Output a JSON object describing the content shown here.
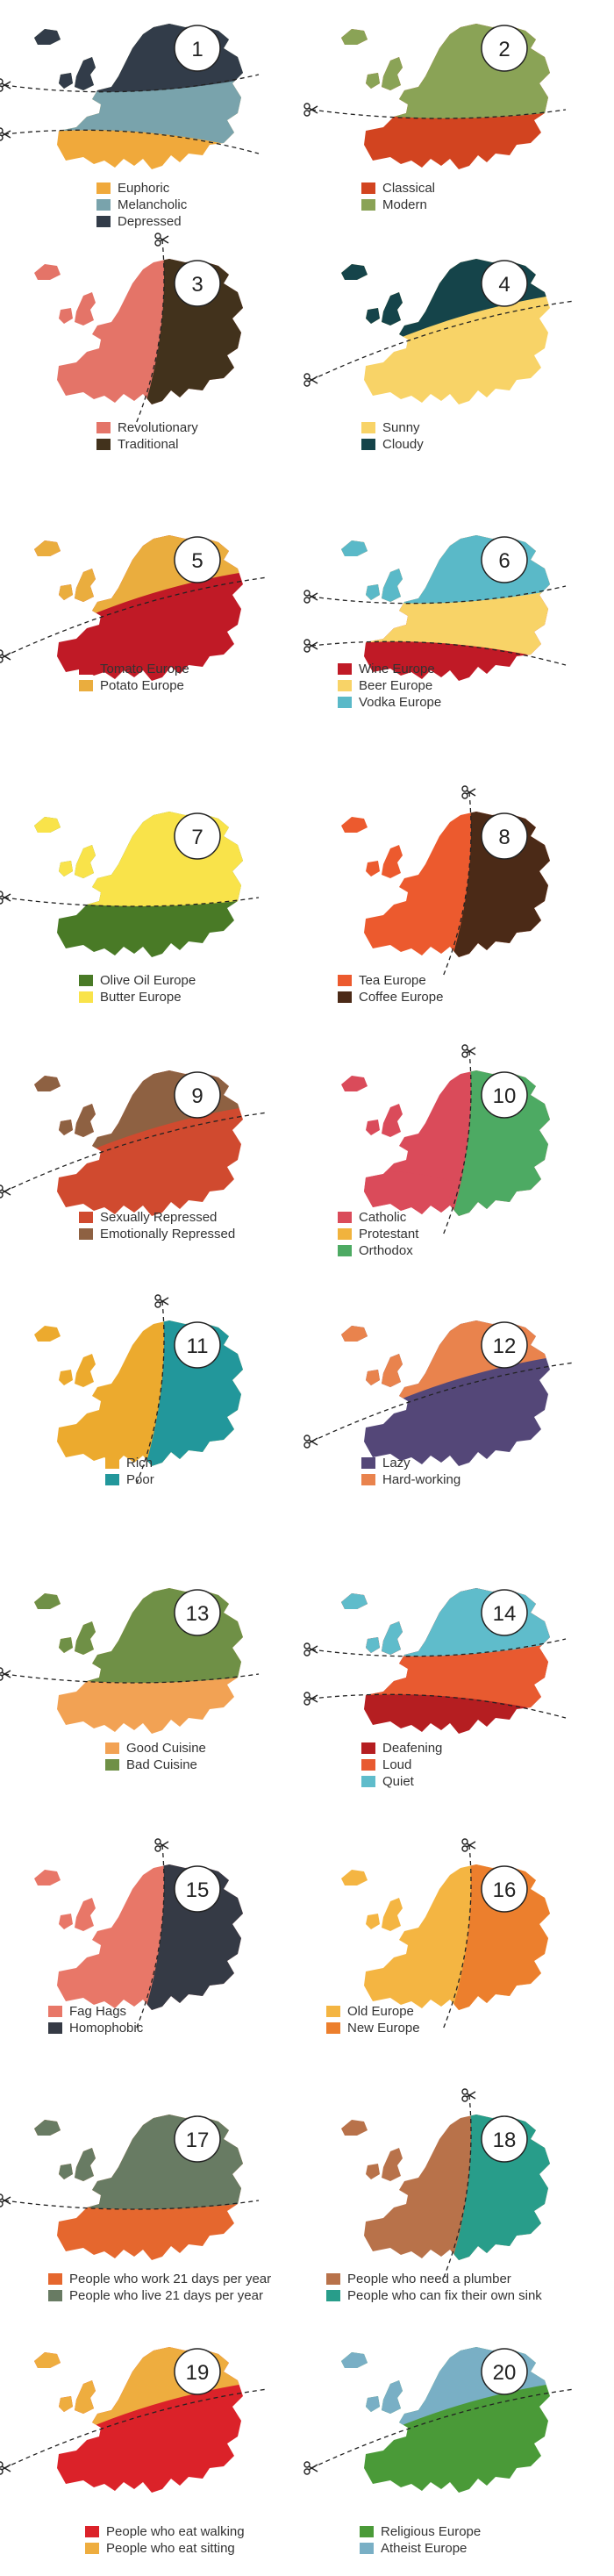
{
  "maps": [
    {
      "number": "1",
      "colors": [
        "#F0A93B",
        "#79A3AC",
        "#323C49"
      ],
      "legend": [
        {
          "label": "Euphoric",
          "color": "#F0A93B"
        },
        {
          "label": "Melancholic",
          "color": "#79A3AC"
        },
        {
          "label": "Depressed",
          "color": "#323C49"
        }
      ]
    },
    {
      "number": "2",
      "colors": [
        "#D24420",
        "#8AA356"
      ],
      "legend": [
        {
          "label": "Classical",
          "color": "#D24420"
        },
        {
          "label": "Modern",
          "color": "#8AA356"
        }
      ]
    },
    {
      "number": "3",
      "colors": [
        "#E47468",
        "#42321C"
      ],
      "legend": [
        {
          "label": "Revolutionary",
          "color": "#E47468"
        },
        {
          "label": "Traditional",
          "color": "#42321C"
        }
      ]
    },
    {
      "number": "4",
      "colors": [
        "#F8D367",
        "#15444A"
      ],
      "legend": [
        {
          "label": "Sunny",
          "color": "#F8D367"
        },
        {
          "label": "Cloudy",
          "color": "#15444A"
        }
      ]
    },
    {
      "number": "5",
      "colors": [
        "#C01A26",
        "#EAAD3E"
      ],
      "legend": [
        {
          "label": "Tomato Europe",
          "color": "#C01A26"
        },
        {
          "label": "Potato Europe",
          "color": "#EAAD3E"
        }
      ]
    },
    {
      "number": "6",
      "colors": [
        "#C01A26",
        "#F8D367",
        "#5AB9C8"
      ],
      "legend": [
        {
          "label": "Wine Europe",
          "color": "#C01A26"
        },
        {
          "label": "Beer Europe",
          "color": "#F8D367"
        },
        {
          "label": "Vodka Europe",
          "color": "#5AB9C8"
        }
      ]
    },
    {
      "number": "7",
      "colors": [
        "#497A26",
        "#F9E34A"
      ],
      "legend": [
        {
          "label": "Olive Oil Europe",
          "color": "#497A26"
        },
        {
          "label": "Butter Europe",
          "color": "#F9E34A"
        }
      ]
    },
    {
      "number": "8",
      "colors": [
        "#EC5A2E",
        "#4B2A17"
      ],
      "legend": [
        {
          "label": "Tea Europe",
          "color": "#EC5A2E"
        },
        {
          "label": "Coffee Europe",
          "color": "#4B2A17"
        }
      ]
    },
    {
      "number": "9",
      "colors": [
        "#D04A2F",
        "#8E6142"
      ],
      "legend": [
        {
          "label": "Sexually Repressed",
          "color": "#D04A2F"
        },
        {
          "label": "Emotionally Repressed",
          "color": "#8E6142"
        }
      ]
    },
    {
      "number": "10",
      "colors": [
        "#DA4B5A",
        "#F1B33D",
        "#4DAA63"
      ],
      "legend": [
        {
          "label": "Catholic",
          "color": "#DA4B5A"
        },
        {
          "label": "Protestant",
          "color": "#F1B33D"
        },
        {
          "label": "Orthodox",
          "color": "#4DAA63"
        }
      ]
    },
    {
      "number": "11",
      "colors": [
        "#ECAA2E",
        "#22979B"
      ],
      "legend": [
        {
          "label": "Rich",
          "color": "#ECAA2E"
        },
        {
          "label": "Poor",
          "color": "#22979B"
        }
      ]
    },
    {
      "number": "12",
      "colors": [
        "#544778",
        "#E9834D"
      ],
      "legend": [
        {
          "label": "Lazy",
          "color": "#544778"
        },
        {
          "label": "Hard-working",
          "color": "#E9834D"
        }
      ]
    },
    {
      "number": "13",
      "colors": [
        "#F2A254",
        "#6F9046"
      ],
      "legend": [
        {
          "label": "Good Cuisine",
          "color": "#F2A254"
        },
        {
          "label": "Bad Cuisine",
          "color": "#6F9046"
        }
      ]
    },
    {
      "number": "14",
      "colors": [
        "#B51E21",
        "#E85A30",
        "#5FBCCB"
      ],
      "legend": [
        {
          "label": "Deafening",
          "color": "#B51E21"
        },
        {
          "label": "Loud",
          "color": "#E85A30"
        },
        {
          "label": "Quiet",
          "color": "#5FBCCB"
        }
      ]
    },
    {
      "number": "15",
      "colors": [
        "#E87768",
        "#353A45"
      ],
      "legend": [
        {
          "label": "Fag Hags",
          "color": "#E87768"
        },
        {
          "label": "Homophobic",
          "color": "#353A45"
        }
      ]
    },
    {
      "number": "16",
      "colors": [
        "#F4B542",
        "#EC7F2D"
      ],
      "legend": [
        {
          "label": "Old Europe",
          "color": "#F4B542"
        },
        {
          "label": "New Europe",
          "color": "#EC7F2D"
        }
      ]
    },
    {
      "number": "17",
      "colors": [
        "#E5672E",
        "#687B63"
      ],
      "legend": [
        {
          "label": "People who work 21 days per year",
          "color": "#E5672E"
        },
        {
          "label": "People who live 21 days per year",
          "color": "#687B63"
        }
      ]
    },
    {
      "number": "18",
      "colors": [
        "#B8724A",
        "#289D8A"
      ],
      "legend": [
        {
          "label": "People who need a plumber",
          "color": "#B8724A"
        },
        {
          "label": "People who can fix their own sink",
          "color": "#289D8A"
        }
      ]
    },
    {
      "number": "19",
      "colors": [
        "#DB2229",
        "#EEAD3F"
      ],
      "legend": [
        {
          "label": "People who eat walking",
          "color": "#DB2229"
        },
        {
          "label": "People who eat sitting",
          "color": "#EEAD3F"
        }
      ]
    },
    {
      "number": "20",
      "colors": [
        "#4A9A38",
        "#79AFC5"
      ],
      "legend": [
        {
          "label": "Religious Europe",
          "color": "#4A9A38"
        },
        {
          "label": "Atheist Europe",
          "color": "#79AFC5"
        }
      ]
    }
  ]
}
